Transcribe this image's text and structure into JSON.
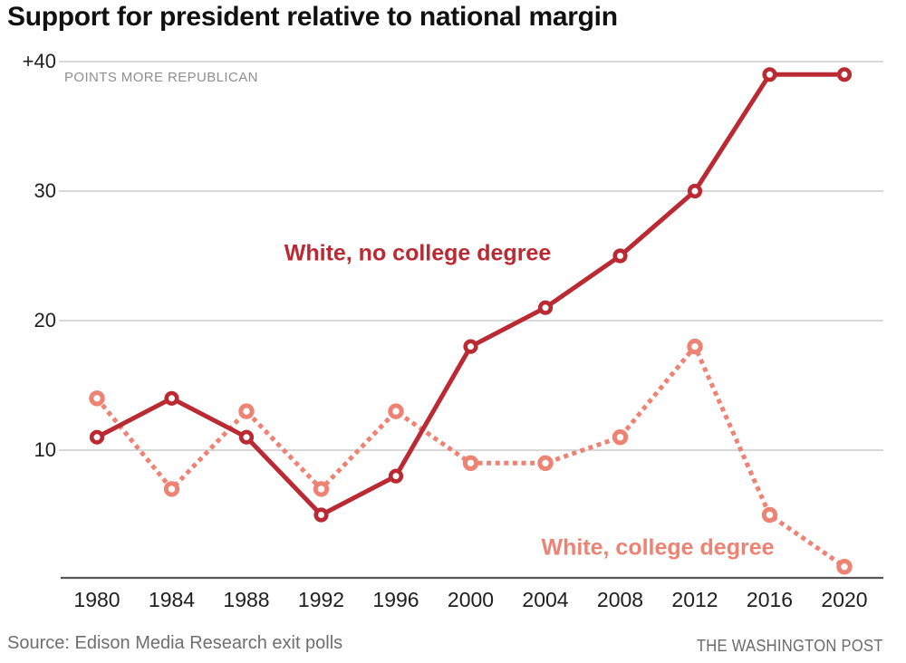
{
  "title": "Support for president relative to national margin",
  "y_axis_note": "POINTS MORE REPUBLICAN",
  "footer": {
    "source": "Source: Edison Media Research exit polls",
    "credit": "THE WASHINGTON POST"
  },
  "colors": {
    "solid_series": "#bb2a32",
    "dotted_series": "#ee8273",
    "gridline": "#cccccc",
    "axis_line": "#565656",
    "title_text": "#111111",
    "tick_text": "#1f1f1f",
    "note_text": "#8f8f8f",
    "footer_text": "#6e6e6e"
  },
  "chart_data": {
    "type": "line",
    "title": "Support for president relative to national margin",
    "x": [
      1980,
      1984,
      1988,
      1992,
      1996,
      2000,
      2004,
      2008,
      2012,
      2016,
      2020
    ],
    "series": [
      {
        "name": "White, no college degree",
        "style": "solid",
        "color": "#bb2a32",
        "values": [
          11,
          14,
          11,
          5,
          8,
          18,
          21,
          25,
          30,
          39,
          39
        ]
      },
      {
        "name": "White, college degree",
        "style": "dotted",
        "color": "#ee8273",
        "values": [
          14,
          7,
          13,
          7,
          13,
          9,
          9,
          11,
          18,
          5,
          1
        ]
      }
    ],
    "yticks": [
      {
        "value": 40,
        "label": "+40"
      },
      {
        "value": 30,
        "label": "30"
      },
      {
        "value": 20,
        "label": "20"
      },
      {
        "value": 10,
        "label": "10"
      }
    ],
    "ylim": [
      0,
      42
    ],
    "xlabel": "",
    "ylabel": "POINTS MORE REPUBLICAN",
    "grid": true,
    "legend": "inline-labels"
  }
}
